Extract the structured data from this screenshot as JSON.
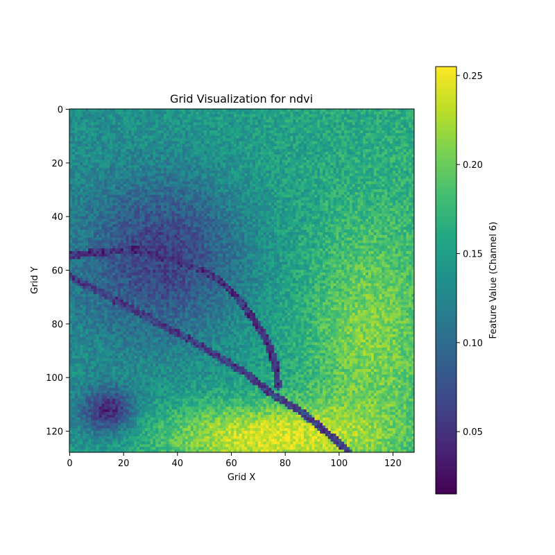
{
  "chart_data": {
    "type": "heatmap",
    "title": "Grid Visualization for ndvi",
    "xlabel": "Grid X",
    "ylabel": "Grid Y",
    "grid_size": [
      128,
      128
    ],
    "xlim": [
      0,
      128
    ],
    "ylim": [
      128,
      0
    ],
    "x_ticks": [
      0,
      20,
      40,
      60,
      80,
      100,
      120
    ],
    "x_tick_labels": [
      "0",
      "20",
      "40",
      "60",
      "80",
      "100",
      "120"
    ],
    "y_ticks": [
      0,
      20,
      40,
      60,
      80,
      100,
      120
    ],
    "y_tick_labels": [
      "0",
      "20",
      "40",
      "60",
      "80",
      "100",
      "120"
    ],
    "colormap": "viridis",
    "colorbar": {
      "label": "Feature Value (Channel 6)",
      "range": [
        0.015,
        0.255
      ],
      "ticks": [
        0.05,
        0.1,
        0.15,
        0.2,
        0.25
      ],
      "tick_labels": [
        "0.05",
        "0.10",
        "0.15",
        "0.20",
        "0.25"
      ]
    },
    "grid": false,
    "features": {
      "background_value": 0.15,
      "low_region_upper_left": {
        "center": [
          35,
          55
        ],
        "value": 0.06
      },
      "low_blob_lower_left": {
        "center": [
          14,
          112
        ],
        "value": 0.05
      },
      "high_region_bottom": {
        "center": [
          70,
          122
        ],
        "value": 0.24
      },
      "high_region_right": {
        "center": [
          110,
          85
        ],
        "value": 0.21
      },
      "dark_lines": [
        {
          "points": [
            [
              0,
              54
            ],
            [
              10,
              53
            ],
            [
              25,
              52
            ],
            [
              35,
              55
            ],
            [
              45,
              58
            ],
            [
              55,
              63
            ],
            [
              62,
              70
            ],
            [
              68,
              78
            ],
            [
              73,
              86
            ],
            [
              76,
              95
            ],
            [
              77,
              103
            ]
          ],
          "value": 0.04
        },
        {
          "points": [
            [
              0,
              62
            ],
            [
              15,
              70
            ],
            [
              30,
              78
            ],
            [
              45,
              86
            ],
            [
              55,
              92
            ],
            [
              65,
              98
            ],
            [
              75,
              106
            ],
            [
              85,
              112
            ],
            [
              95,
              120
            ],
            [
              103,
              127
            ]
          ],
          "value": 0.05
        }
      ]
    }
  }
}
